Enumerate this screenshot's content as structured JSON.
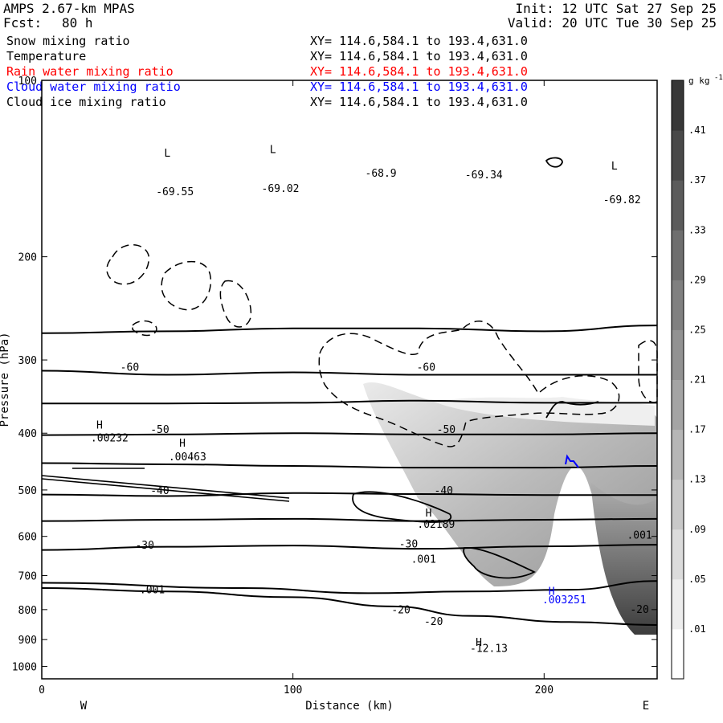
{
  "header": {
    "model": "AMPS 2.67-km MPAS",
    "fcst_label": "Fcst:",
    "fcst_value": "80 h",
    "init": "Init: 12 UTC Sat 27 Sep 25",
    "valid": "Valid: 20 UTC Tue 30 Sep 25"
  },
  "legend": [
    {
      "name": "Snow mixing ratio",
      "range": "XY= 114.6,584.1 to 193.4,631.0",
      "color": "#000000"
    },
    {
      "name": "Temperature",
      "range": "XY= 114.6,584.1 to 193.4,631.0",
      "color": "#000000"
    },
    {
      "name": "Rain water mixing ratio",
      "range": "XY= 114.6,584.1 to 193.4,631.0",
      "color": "#ff0000"
    },
    {
      "name": "Cloud water mixing ratio",
      "range": "XY= 114.6,584.1 to 193.4,631.0",
      "color": "#0000ff"
    },
    {
      "name": "Cloud ice mixing ratio",
      "range": "XY= 114.6,584.1 to 193.4,631.0",
      "color": "#000000"
    }
  ],
  "chart_data": {
    "type": "contour",
    "xlabel": "Distance (km)",
    "ylabel": "Pressure (hPa)",
    "xlim": [
      0,
      245
    ],
    "ylim": [
      1050,
      100
    ],
    "y_log_scale": true,
    "x_ticks": [
      0,
      100,
      200
    ],
    "y_ticks": [
      100,
      200,
      300,
      400,
      500,
      600,
      700,
      800,
      900,
      1000
    ],
    "left_end": "W",
    "right_end": "E",
    "colorbar": {
      "unit": "g kg",
      "unit_exp": "-1",
      "labels": [
        ".41",
        ".37",
        ".33",
        ".29",
        ".25",
        ".21",
        ".17",
        ".13",
        ".09",
        ".05",
        ".01"
      ]
    },
    "temperature_isotherms": [
      {
        "label": "-60",
        "points": [
          [
            0,
            270
          ],
          [
            50,
            268
          ],
          [
            100,
            265
          ],
          [
            150,
            265
          ],
          [
            200,
            268
          ],
          [
            245,
            262
          ]
        ]
      },
      {
        "label": "-60",
        "points": [
          [
            0,
            313
          ],
          [
            50,
            318
          ],
          [
            100,
            315
          ],
          [
            150,
            318
          ],
          [
            200,
            318
          ],
          [
            245,
            318
          ]
        ]
      },
      {
        "label": "",
        "points": [
          [
            0,
            356
          ],
          [
            50,
            356
          ],
          [
            100,
            355
          ],
          [
            150,
            352
          ],
          [
            200,
            355
          ],
          [
            245,
            355
          ]
        ]
      },
      {
        "label": "-50",
        "points": [
          [
            0,
            403
          ],
          [
            50,
            402
          ],
          [
            100,
            400
          ],
          [
            150,
            402
          ],
          [
            200,
            402
          ],
          [
            245,
            400
          ]
        ]
      },
      {
        "label": "",
        "points": [
          [
            0,
            450
          ],
          [
            50,
            452
          ],
          [
            100,
            455
          ],
          [
            150,
            458
          ],
          [
            200,
            458
          ],
          [
            245,
            455
          ]
        ]
      },
      {
        "label": "-40",
        "points": [
          [
            0,
            509
          ],
          [
            50,
            512
          ],
          [
            100,
            506
          ],
          [
            150,
            508
          ],
          [
            200,
            510
          ],
          [
            245,
            510
          ]
        ]
      },
      {
        "label": "",
        "points": [
          [
            0,
            565
          ],
          [
            50,
            562
          ],
          [
            100,
            560
          ],
          [
            150,
            565
          ],
          [
            200,
            562
          ],
          [
            245,
            560
          ]
        ]
      },
      {
        "label": "-30",
        "points": [
          [
            0,
            633
          ],
          [
            50,
            625
          ],
          [
            100,
            622
          ],
          [
            150,
            630
          ],
          [
            200,
            624
          ],
          [
            245,
            620
          ]
        ]
      },
      {
        "label": "",
        "points": [
          [
            0,
            720
          ],
          [
            80,
            735
          ],
          [
            130,
            750
          ],
          [
            170,
            745
          ],
          [
            210,
            740
          ],
          [
            245,
            715
          ]
        ]
      },
      {
        "label": "-20",
        "points": [
          [
            0,
            735
          ],
          [
            50,
            745
          ],
          [
            100,
            762
          ],
          [
            140,
            790
          ],
          [
            170,
            820
          ],
          [
            210,
            840
          ],
          [
            245,
            850
          ]
        ]
      }
    ],
    "labels": [
      {
        "text": "L",
        "x": 50,
        "y": 135
      },
      {
        "text": "-69.55",
        "x": 53,
        "y": 157
      },
      {
        "text": "L",
        "x": 92,
        "y": 133
      },
      {
        "text": "-69.02",
        "x": 95,
        "y": 155
      },
      {
        "text": "-68.9",
        "x": 135,
        "y": 146
      },
      {
        "text": "-69.34",
        "x": 176,
        "y": 147
      },
      {
        "text": "L",
        "x": 228,
        "y": 142
      },
      {
        "text": "-69.82",
        "x": 231,
        "y": 162
      },
      {
        "text": "-60",
        "x": 35,
        "y": 313
      },
      {
        "text": "-60",
        "x": 153,
        "y": 313
      },
      {
        "text": "-50",
        "x": 47,
        "y": 400
      },
      {
        "text": "-50",
        "x": 161,
        "y": 400
      },
      {
        "text": "-40",
        "x": 47,
        "y": 508
      },
      {
        "text": "-40",
        "x": 160,
        "y": 508
      },
      {
        "text": "-30",
        "x": 41,
        "y": 630
      },
      {
        "text": "-30",
        "x": 146,
        "y": 627
      },
      {
        "text": "-20",
        "x": 143,
        "y": 812
      },
      {
        "text": "-20",
        "x": 156,
        "y": 850
      },
      {
        "text": "-20",
        "x": 238,
        "y": 810
      },
      {
        "text": "H",
        "x": 23,
        "y": 393
      },
      {
        "text": ".00232",
        "x": 27,
        "y": 413
      },
      {
        "text": "H",
        "x": 56,
        "y": 422
      },
      {
        "text": ".00463",
        "x": 58,
        "y": 445
      },
      {
        "text": "H",
        "x": 154,
        "y": 555
      },
      {
        "text": ".02189",
        "x": 157,
        "y": 580
      },
      {
        "text": ".001",
        "x": 152,
        "y": 665
      },
      {
        "text": ".001",
        "x": 238,
        "y": 605
      },
      {
        "text": ".001",
        "x": 44,
        "y": 750
      },
      {
        "text": "H",
        "x": 174,
        "y": 922
      },
      {
        "text": "-12.13",
        "x": 178,
        "y": 945
      },
      {
        "text": "H",
        "x": 203,
        "y": 755,
        "color": "#0000ff"
      },
      {
        "text": ".003251",
        "x": 208,
        "y": 780,
        "color": "#0000ff"
      }
    ]
  }
}
